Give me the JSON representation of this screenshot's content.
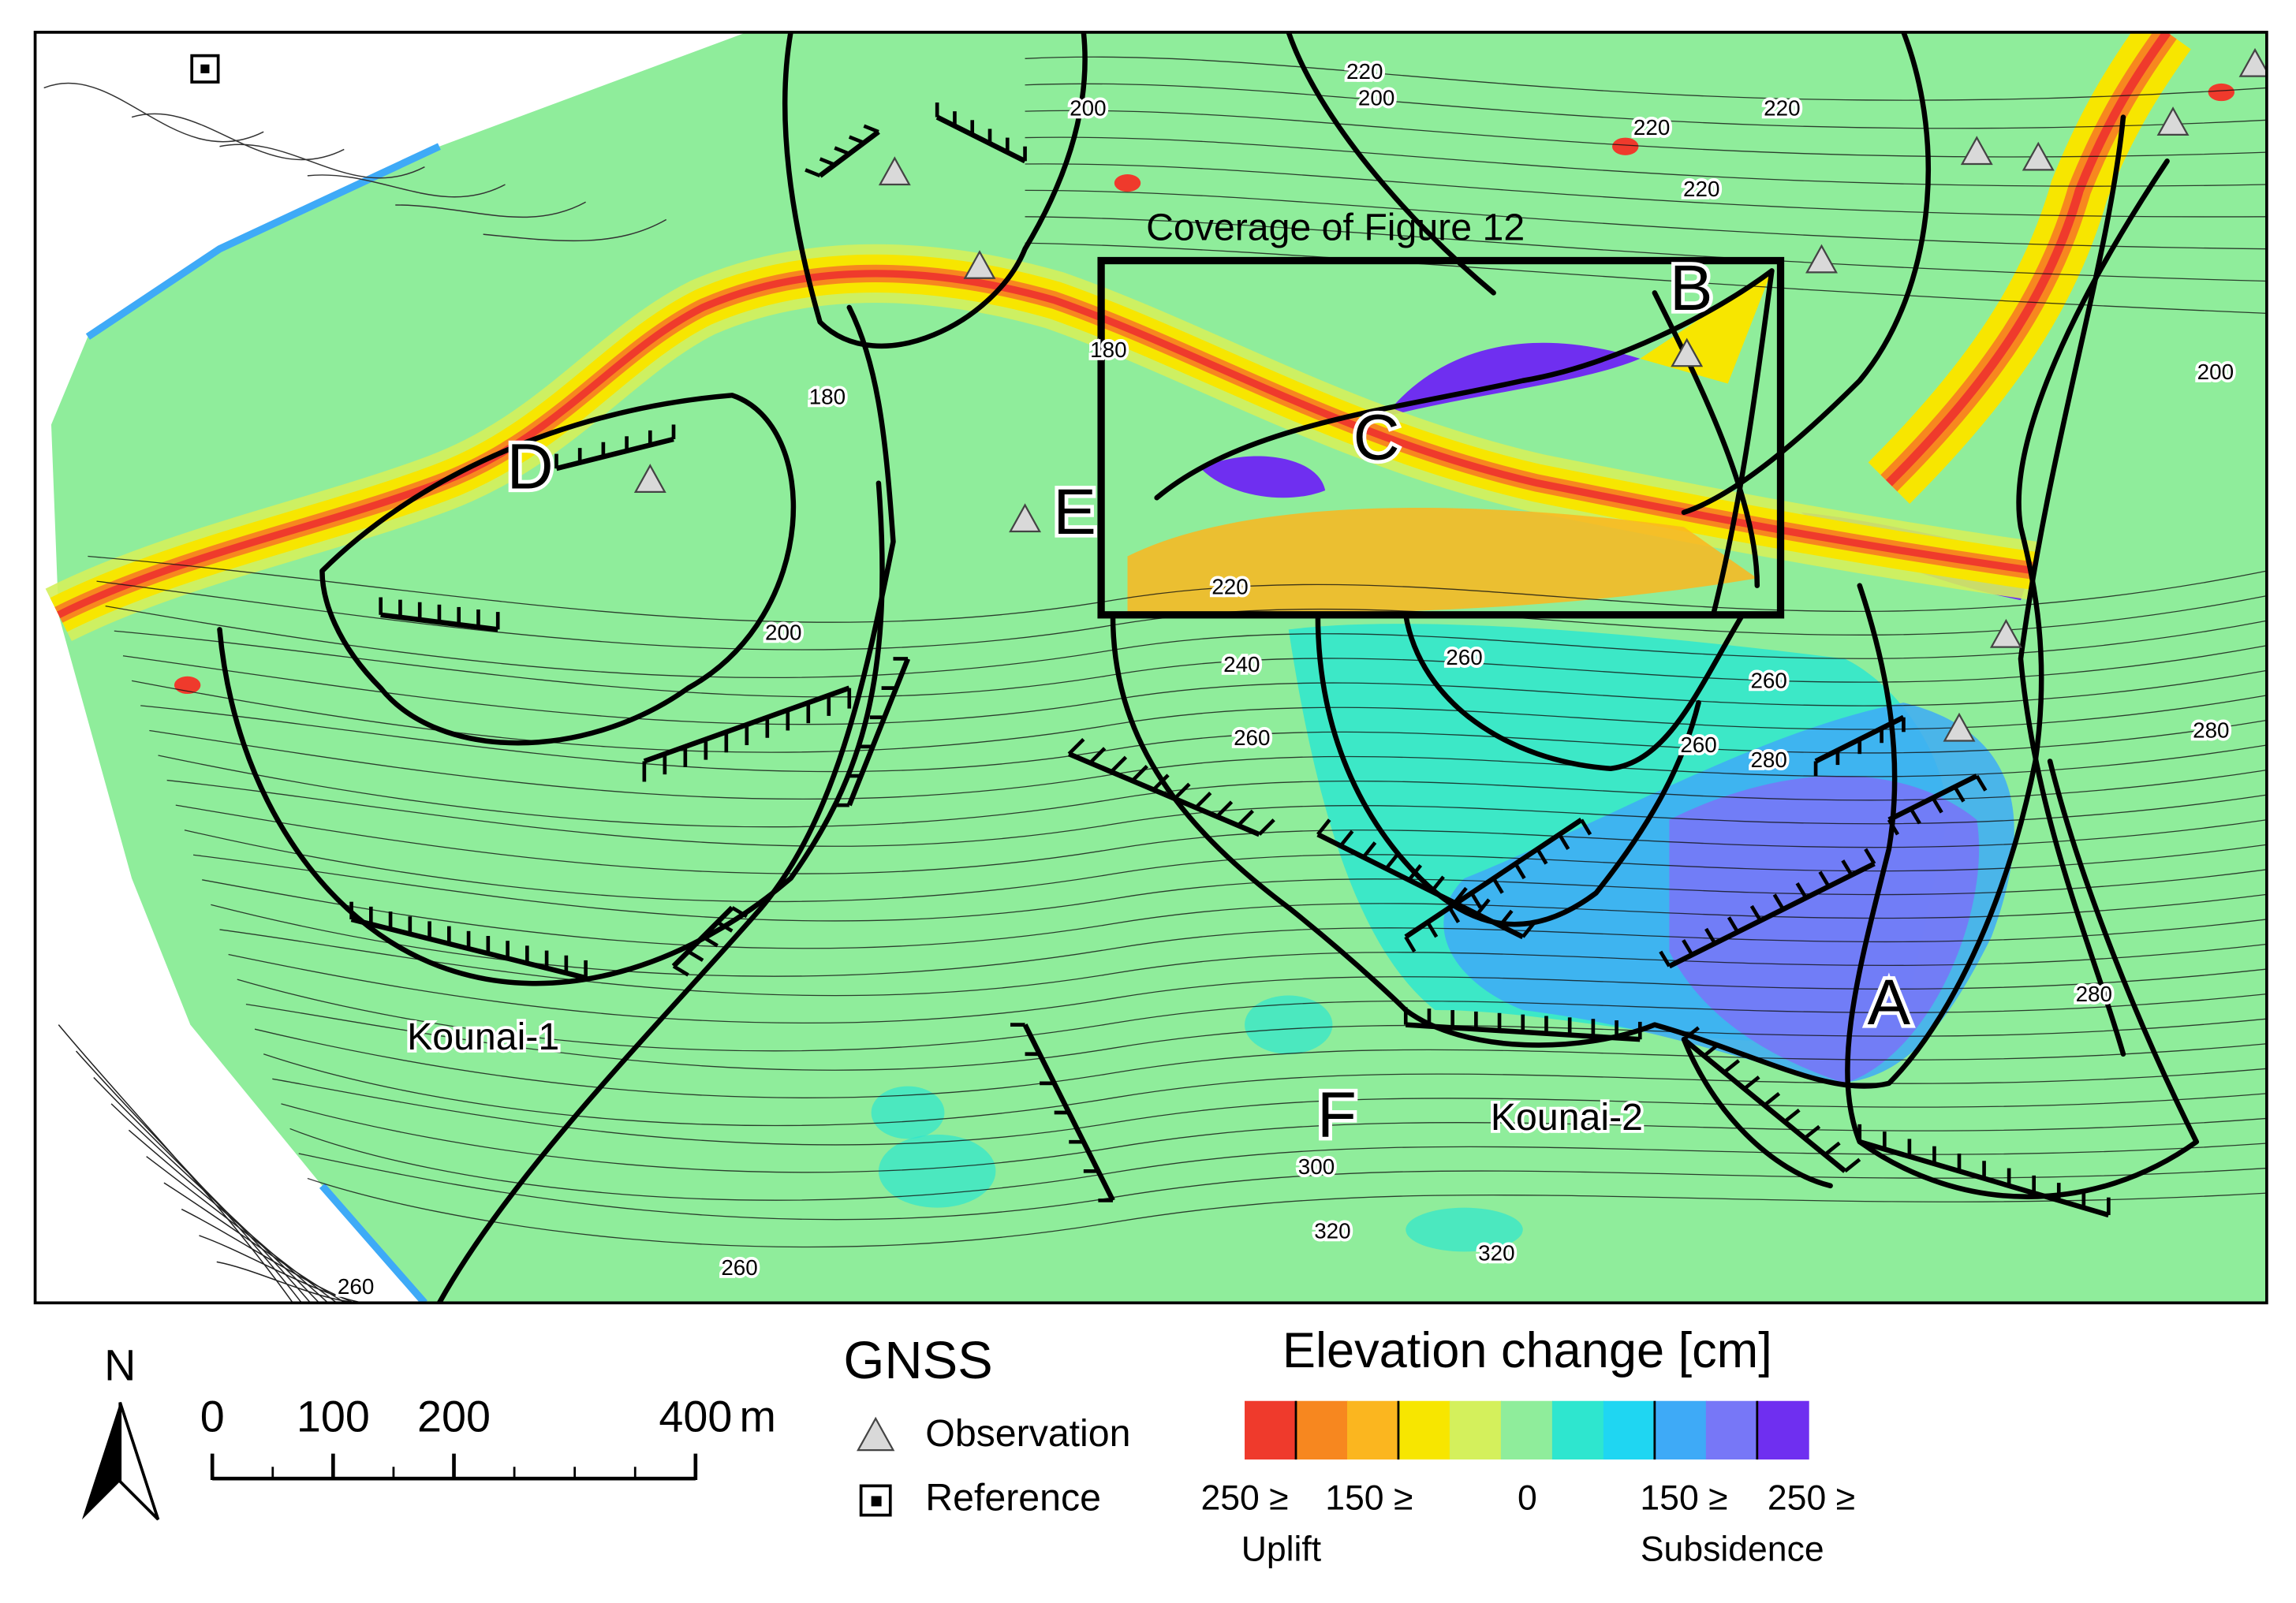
{
  "map": {
    "coverage_label": "Coverage of Figure 12",
    "site_letters": [
      "A",
      "B",
      "C",
      "D",
      "E",
      "F"
    ],
    "landslide_names": [
      "Kounai-1",
      "Kounai-2"
    ],
    "contour_labels": [
      220,
      200,
      200,
      220,
      220,
      220,
      180,
      180,
      200,
      220,
      200,
      240,
      260,
      260,
      260,
      260,
      280,
      280,
      280,
      300,
      320,
      320,
      260,
      260
    ]
  },
  "north_arrow": {
    "label": "N"
  },
  "scale_bar": {
    "ticks": [
      0,
      100,
      200,
      400
    ],
    "unit": "m"
  },
  "gnss_legend": {
    "title": "GNSS",
    "items": [
      "Observation",
      "Reference"
    ]
  },
  "elevation_legend": {
    "title": "Elevation change [cm]",
    "colors": [
      "#ef3a2c",
      "#f7871f",
      "#fbb61f",
      "#f7e600",
      "#d4f05c",
      "#8fed9b",
      "#2ee6cf",
      "#1fd6f2",
      "#3eaaf7",
      "#7777f7",
      "#6f2ff0"
    ],
    "labels": [
      "250 ≥",
      "150 ≥",
      "0",
      "150 ≥",
      "250 ≥"
    ],
    "sides": [
      "Uplift",
      "Subsidence"
    ]
  }
}
